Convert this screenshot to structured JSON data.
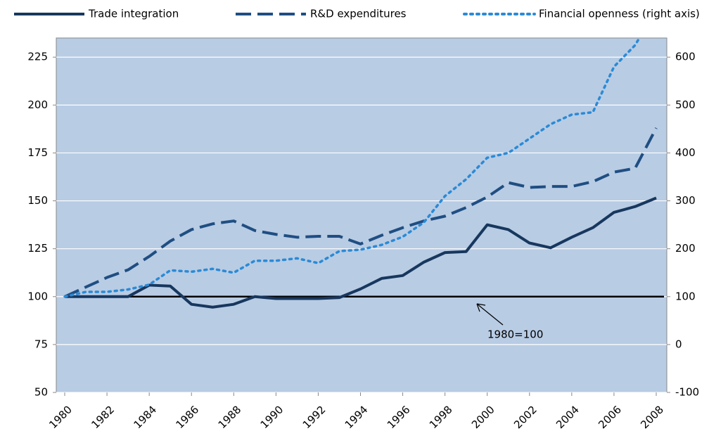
{
  "chart_data": {
    "type": "line",
    "x": [
      1980,
      1981,
      1982,
      1983,
      1984,
      1985,
      1986,
      1987,
      1988,
      1989,
      1990,
      1991,
      1992,
      1993,
      1994,
      1995,
      1996,
      1997,
      1998,
      1999,
      2000,
      2001,
      2002,
      2003,
      2004,
      2005,
      2006,
      2007,
      2008
    ],
    "series": [
      {
        "name": "Trade integration",
        "color": "#17375e",
        "dash": "solid",
        "values": [
          100,
          100,
          100,
          100,
          106,
          105.5,
          96,
          94.5,
          96,
          100,
          99,
          99,
          99,
          99.5,
          104,
          109.5,
          111,
          118,
          123,
          123.5,
          137.5,
          135,
          128,
          125.5,
          131,
          136,
          144,
          147,
          151.5
        ]
      },
      {
        "name": "R&D expenditures",
        "color": "#1f4e82",
        "dash": "dashed",
        "values": [
          100,
          105,
          110,
          114,
          121,
          129,
          135,
          138,
          139.5,
          134.5,
          132.5,
          131,
          131.5,
          131.5,
          127.5,
          132,
          136,
          139.5,
          142,
          146.5,
          152,
          159.5,
          157,
          157.5,
          157.5,
          160,
          165,
          167,
          188
        ]
      },
      {
        "name": "Financial openness  (right axis)",
        "color": "#2a8ad6",
        "dash": "dotted",
        "axis": "y2",
        "values": [
          100,
          110,
          110,
          115,
          125,
          155,
          152,
          158,
          150,
          175,
          175,
          180,
          170,
          195,
          198,
          208,
          225,
          255,
          310,
          345,
          390,
          400,
          430,
          460,
          480,
          485,
          580,
          625,
          700
        ]
      }
    ],
    "xlim": [
      1979.6,
      2008.5
    ],
    "xticks": [
      1980,
      1982,
      1984,
      1986,
      1988,
      1990,
      1992,
      1994,
      1996,
      1998,
      2000,
      2002,
      2004,
      2006,
      2008
    ],
    "ylim": [
      50,
      235
    ],
    "yticks": [
      50,
      75,
      100,
      125,
      150,
      175,
      200,
      225
    ],
    "y2lim": [
      -100,
      640
    ],
    "y2ticks": [
      -100,
      0,
      100,
      200,
      300,
      400,
      500,
      600
    ],
    "reference_line": 100,
    "annotation": "1980=100",
    "grid": true,
    "legend": "top"
  }
}
